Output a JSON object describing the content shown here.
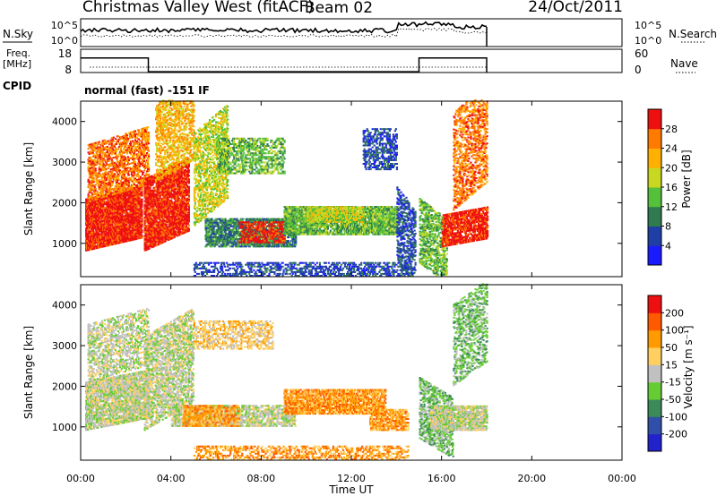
{
  "header": {
    "station": "Christmas Valley West (fitACF)",
    "beam": "Beam 02",
    "date": "24/Oct/2011"
  },
  "noise_panel": {
    "left_label": "N.Sky",
    "right_label": "N.Search",
    "left_ticks": [
      "10^5",
      "10^0"
    ],
    "right_ticks": [
      "10^5",
      "10^0"
    ]
  },
  "freq_panel": {
    "left_label_line1": "Freq.",
    "left_label_line2": "[MHz]",
    "left_ticks": [
      "18",
      "8"
    ],
    "right_ticks": [
      "60",
      "0"
    ],
    "right_label": "Nave"
  },
  "cpid_panel": {
    "label": "CPID",
    "value": "normal (fast) -151 IF"
  },
  "power_panel": {
    "ylabel": "Slant Range [km]",
    "yticks": [
      "4000",
      "3000",
      "2000",
      "1000"
    ],
    "colorbar_label": "Power [dB]",
    "colorbar_ticks": [
      "28",
      "24",
      "20",
      "16",
      "12",
      "8",
      "4"
    ],
    "colors": [
      "#1a1aff",
      "#1f3fa6",
      "#2f7a4f",
      "#55c03a",
      "#c8d820",
      "#ffb000",
      "#ff7a00",
      "#ee1010"
    ]
  },
  "velocity_panel": {
    "ylabel": "Slant Range [km]",
    "yticks": [
      "4000",
      "3000",
      "2000",
      "1000"
    ],
    "colorbar_label": "Velocity [m s⁻¹]",
    "colorbar_ticks": [
      "200",
      "100",
      "50",
      "15",
      "-15",
      "-50",
      "-100",
      "-200"
    ],
    "colors": [
      "#2222cc",
      "#2f4fa8",
      "#3a8a5a",
      "#66cc33",
      "#c0c0c0",
      "#ffd060",
      "#ff9a00",
      "#ff5a00",
      "#ee1010"
    ]
  },
  "x_axis": {
    "label": "Time UT",
    "ticks": [
      "00:00",
      "04:00",
      "08:00",
      "12:00",
      "16:00",
      "20:00",
      "00:00"
    ]
  },
  "chart_data": {
    "type": "heatmap",
    "x_range_hours": [
      0,
      24
    ],
    "data_end_hours": 18,
    "y_range_km": [
      180,
      4500
    ],
    "freq_mhz_segments": [
      {
        "from": 0,
        "to": 3,
        "value": 17
      },
      {
        "from": 3,
        "to": 15,
        "value": 8.5
      },
      {
        "from": 15,
        "to": 18,
        "value": 17
      }
    ],
    "power_regions": [
      {
        "t0": 0.2,
        "t1": 2.7,
        "r0": 800,
        "r1": 2100,
        "slant": 320,
        "level": 7,
        "density": 0.9
      },
      {
        "t0": 0.3,
        "t1": 3.0,
        "r0": 2000,
        "r1": 3400,
        "slant": 450,
        "level": 6,
        "density": 0.55
      },
      {
        "t0": 2.8,
        "t1": 4.8,
        "r0": 800,
        "r1": 2600,
        "slant": 500,
        "level": 7,
        "density": 0.8
      },
      {
        "t0": 3.3,
        "t1": 5.0,
        "r0": 2500,
        "r1": 4400,
        "slant": 550,
        "level": 5,
        "density": 0.5
      },
      {
        "t0": 5.0,
        "t1": 6.5,
        "r0": 1400,
        "r1": 3700,
        "slant": 700,
        "level": 4,
        "density": 0.5
      },
      {
        "t0": 6.0,
        "t1": 9.0,
        "r0": 2700,
        "r1": 3600,
        "slant": 0,
        "level": 3,
        "density": 0.45
      },
      {
        "t0": 5.5,
        "t1": 9.5,
        "r0": 900,
        "r1": 1600,
        "slant": 0,
        "level": 2,
        "density": 0.7
      },
      {
        "t0": 7.0,
        "t1": 9.0,
        "r0": 1000,
        "r1": 1500,
        "slant": 0,
        "level": 7,
        "density": 0.45
      },
      {
        "t0": 9.0,
        "t1": 14.0,
        "r0": 1200,
        "r1": 1900,
        "slant": 0,
        "level": 3,
        "density": 0.75
      },
      {
        "t0": 10.0,
        "t1": 12.5,
        "r0": 1500,
        "r1": 1900,
        "slant": 0,
        "level": 4,
        "density": 0.6
      },
      {
        "t0": 12.5,
        "t1": 14.0,
        "r0": 2800,
        "r1": 3800,
        "slant": 0,
        "level": 1,
        "density": 0.4
      },
      {
        "t0": 14.0,
        "t1": 14.8,
        "r0": 600,
        "r1": 2400,
        "slant": -600,
        "level": 1,
        "density": 0.5
      },
      {
        "t0": 15.0,
        "t1": 16.2,
        "r0": 500,
        "r1": 2100,
        "slant": -500,
        "level": 3,
        "density": 0.55
      },
      {
        "t0": 16.0,
        "t1": 18.0,
        "r0": 900,
        "r1": 1700,
        "slant": 200,
        "level": 7,
        "density": 0.75
      },
      {
        "t0": 16.5,
        "t1": 18.0,
        "r0": 1800,
        "r1": 4200,
        "slant": 700,
        "level": 6,
        "density": 0.45
      },
      {
        "t0": 5.0,
        "t1": 14.5,
        "r0": 180,
        "r1": 500,
        "slant": 0,
        "level": 1,
        "density": 0.4
      }
    ],
    "velocity_regions": [
      {
        "t0": 0.2,
        "t1": 3.0,
        "r0": 900,
        "r1": 2100,
        "slant": 300,
        "level": 4,
        "density": 0.75
      },
      {
        "t0": 0.3,
        "t1": 3.0,
        "r0": 2100,
        "r1": 3500,
        "slant": 400,
        "level": 4,
        "density": 0.45
      },
      {
        "t0": 2.8,
        "t1": 5.0,
        "r0": 900,
        "r1": 3200,
        "slant": 700,
        "level": 4,
        "density": 0.55
      },
      {
        "t0": 4.0,
        "t1": 9.5,
        "r0": 1000,
        "r1": 1500,
        "slant": 0,
        "level": 4,
        "density": 0.6
      },
      {
        "t0": 5.0,
        "t1": 8.5,
        "r0": 2900,
        "r1": 3600,
        "slant": 0,
        "level": 5,
        "density": 0.4
      },
      {
        "t0": 4.5,
        "t1": 7.0,
        "r0": 1000,
        "r1": 1500,
        "slant": 0,
        "level": 6,
        "density": 0.55
      },
      {
        "t0": 9.0,
        "t1": 13.5,
        "r0": 1300,
        "r1": 1900,
        "slant": 0,
        "level": 6,
        "density": 0.75
      },
      {
        "t0": 12.8,
        "t1": 14.5,
        "r0": 900,
        "r1": 1400,
        "slant": 0,
        "level": 6,
        "density": 0.6
      },
      {
        "t0": 15.0,
        "t1": 16.5,
        "r0": 700,
        "r1": 2200,
        "slant": -500,
        "level": 3,
        "density": 0.5
      },
      {
        "t0": 15.5,
        "t1": 18.0,
        "r0": 900,
        "r1": 1500,
        "slant": 0,
        "level": 4,
        "density": 0.75
      },
      {
        "t0": 16.5,
        "t1": 18.0,
        "r0": 2000,
        "r1": 4000,
        "slant": 600,
        "level": 3,
        "density": 0.4
      },
      {
        "t0": 5.0,
        "t1": 14.5,
        "r0": 180,
        "r1": 500,
        "slant": 0,
        "level": 6,
        "density": 0.4
      }
    ]
  }
}
